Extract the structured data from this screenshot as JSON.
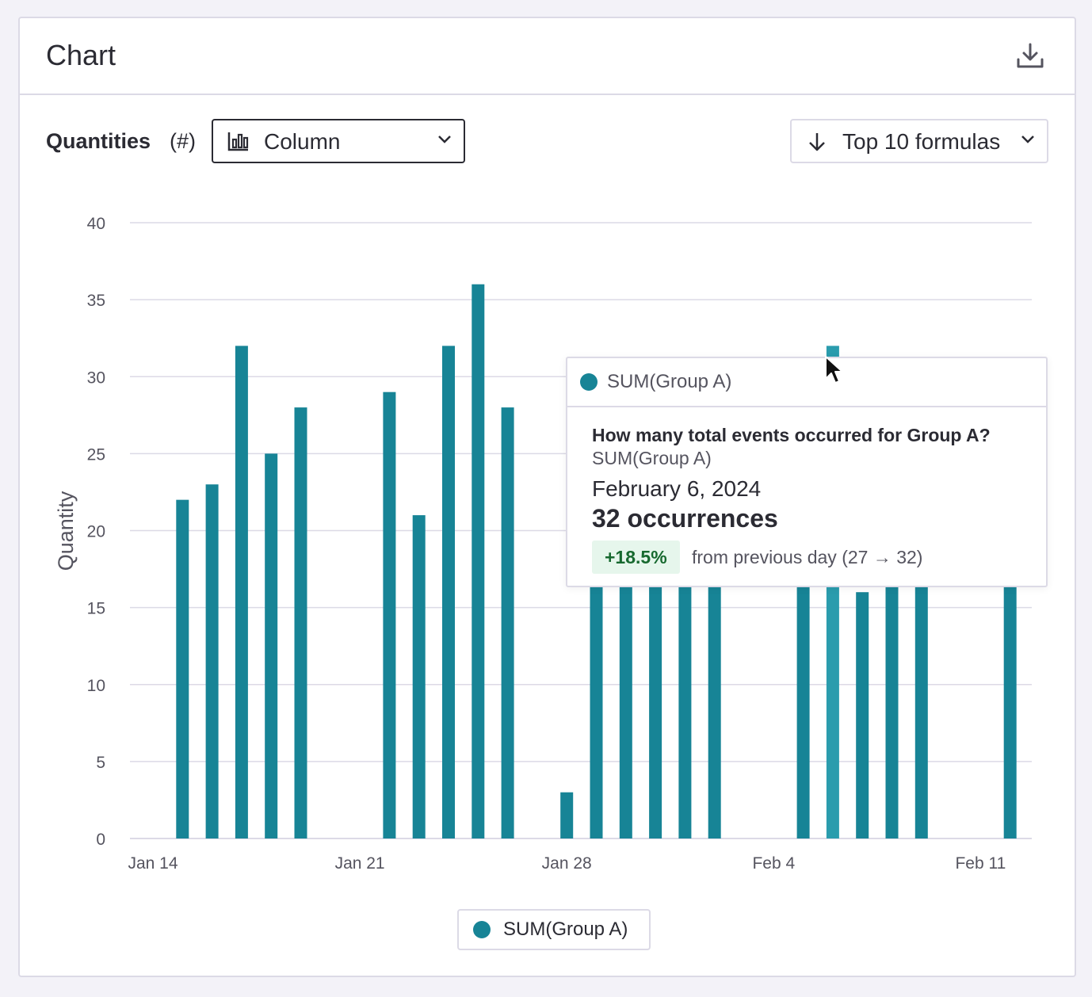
{
  "card": {
    "title": "Chart"
  },
  "controls": {
    "label": "Quantities",
    "unit": "(#)",
    "chart_type": "Column",
    "sort": "Top 10 formulas"
  },
  "colors": {
    "bar": "#178496",
    "bar_highlight": "#2a9cad",
    "grid": "#dcdae6",
    "positive_bg": "#e6f6ec",
    "positive_text": "#17692f"
  },
  "icons": {
    "download": "download-icon",
    "column": "column-chart-icon",
    "sort": "arrow-down-icon",
    "chevron": "chevron-down-icon"
  },
  "chart_data": {
    "type": "bar",
    "xlabel": "",
    "ylabel": "Quantity",
    "ylim": [
      0,
      40
    ],
    "yticks": [
      0,
      5,
      10,
      15,
      20,
      25,
      30,
      35,
      40
    ],
    "xticks": [
      "Jan 14",
      "Jan 21",
      "Jan 28",
      "Feb 4",
      "Feb 11"
    ],
    "grid": true,
    "legend": "bottom-center",
    "dates": [
      "2024-01-15",
      "2024-01-16",
      "2024-01-17",
      "2024-01-18",
      "2024-01-19",
      "2024-01-22",
      "2024-01-23",
      "2024-01-24",
      "2024-01-25",
      "2024-01-26",
      "2024-01-28",
      "2024-01-29",
      "2024-01-30",
      "2024-01-31",
      "2024-02-01",
      "2024-02-02",
      "2024-02-05",
      "2024-02-06",
      "2024-02-07",
      "2024-02-08",
      "2024-02-09",
      "2024-02-12"
    ],
    "series": [
      {
        "name": "SUM(Group A)",
        "values": [
          22,
          23,
          32,
          25,
          28,
          29,
          21,
          32,
          36,
          28,
          3,
          26,
          31,
          23,
          24,
          23,
          27,
          32,
          16,
          26,
          23,
          23
        ]
      }
    ],
    "highlight_date": "2024-02-06"
  },
  "tooltip": {
    "series": "SUM(Group A)",
    "question": "How many total events occurred for Group A?",
    "formula": "SUM(Group A)",
    "date": "February 6, 2024",
    "value": "32 occurrences",
    "delta": "+18.5%",
    "delta_text": "from previous day (27 → 32)"
  }
}
